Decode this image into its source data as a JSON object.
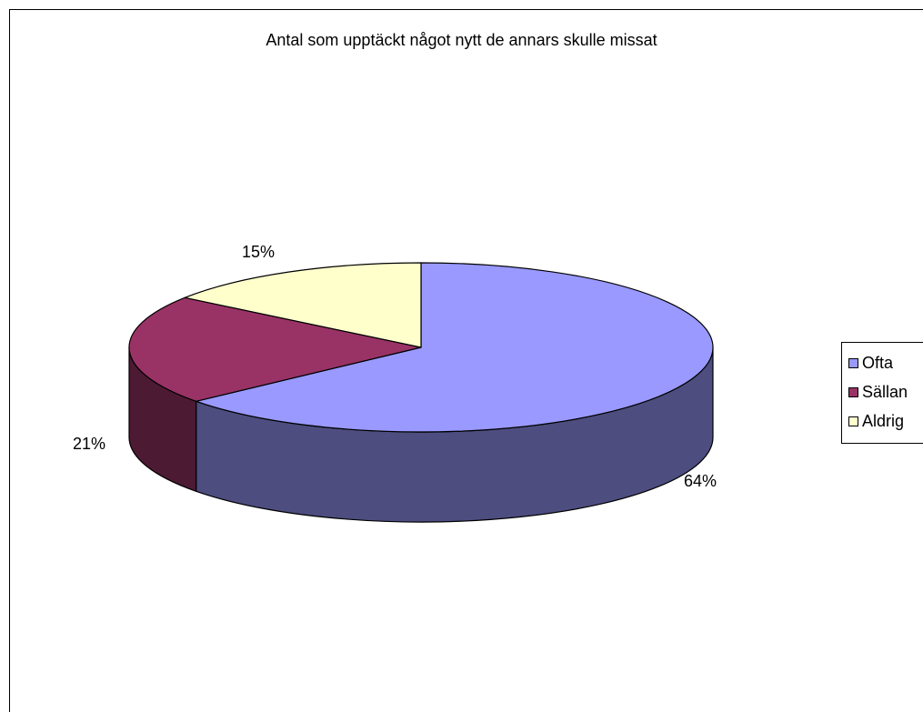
{
  "chart_data": {
    "type": "pie",
    "title": "Antal som upptäckt något nytt de annars skulle missat",
    "slices": [
      {
        "label": "Ofta",
        "value": 64,
        "data_label": "64%",
        "color": "#9999ff",
        "side_color": "#4d4d80"
      },
      {
        "label": "Sällan",
        "value": 21,
        "data_label": "21%",
        "color": "#993366",
        "side_color": "#4d1a33"
      },
      {
        "label": "Aldrig",
        "value": 15,
        "data_label": "15%",
        "color": "#ffffcc",
        "side_color": "#808066"
      }
    ],
    "legend_position": "right",
    "style": "3d"
  }
}
